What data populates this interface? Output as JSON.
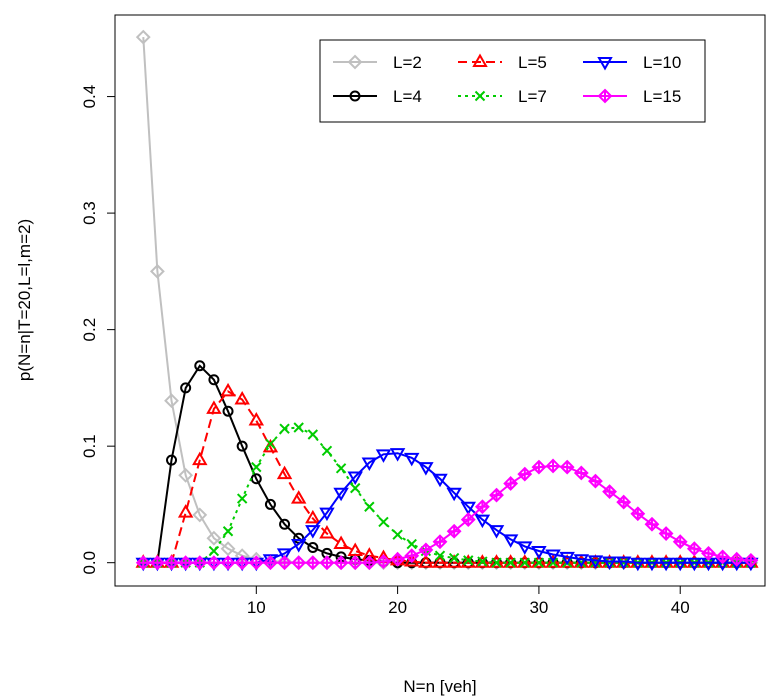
{
  "chart_data": {
    "type": "line",
    "title": "",
    "xlabel": "N=n [veh]",
    "ylabel": "p(N=n|T=20,L=l,m=2)",
    "xlim": [
      0,
      46
    ],
    "ylim": [
      -0.02,
      0.47
    ],
    "xticks": [
      10,
      20,
      30,
      40
    ],
    "yticks": [
      0.0,
      0.1,
      0.2,
      0.3,
      0.4
    ],
    "ytick_labels": [
      "0.0",
      "0.1",
      "0.2",
      "0.3",
      "0.4"
    ],
    "legend_position": "top-right",
    "series": [
      {
        "name": "L=2",
        "color": "#c0c0c0",
        "marker": "diamond",
        "linestyle": "solid",
        "x": [
          2,
          3,
          4,
          5,
          6,
          7,
          8,
          9,
          10,
          11,
          12,
          13,
          14,
          15,
          16,
          17,
          18,
          19,
          20,
          21,
          22,
          23,
          24,
          25,
          26,
          27,
          28,
          29,
          30,
          31,
          32,
          33,
          34,
          35,
          36,
          37,
          38,
          39,
          40,
          41,
          42,
          43,
          44,
          45
        ],
        "values": [
          0.451,
          0.25,
          0.139,
          0.075,
          0.041,
          0.021,
          0.012,
          0.006,
          0.003,
          0.001,
          0.001,
          0,
          0,
          0,
          0,
          0,
          0,
          0,
          0,
          0,
          0,
          0,
          0,
          0,
          0,
          0,
          0,
          0,
          0,
          0,
          0,
          0,
          0,
          0,
          0,
          0,
          0,
          0,
          0,
          0,
          0,
          0,
          0,
          0
        ]
      },
      {
        "name": "L=4",
        "color": "#000000",
        "marker": "circle",
        "linestyle": "solid",
        "x": [
          2,
          3,
          4,
          5,
          6,
          7,
          8,
          9,
          10,
          11,
          12,
          13,
          14,
          15,
          16,
          17,
          18,
          19,
          20,
          21,
          22,
          23,
          24,
          25,
          26,
          27,
          28,
          29,
          30,
          31,
          32,
          33,
          34,
          35,
          36,
          37,
          38,
          39,
          40,
          41,
          42,
          43,
          44,
          45
        ],
        "values": [
          0,
          0,
          0.088,
          0.15,
          0.169,
          0.157,
          0.13,
          0.1,
          0.072,
          0.05,
          0.033,
          0.021,
          0.013,
          0.008,
          0.005,
          0.003,
          0.002,
          0.001,
          0,
          0,
          0,
          0,
          0,
          0,
          0,
          0,
          0,
          0,
          0,
          0,
          0,
          0,
          0,
          0,
          0,
          0,
          0,
          0,
          0,
          0,
          0,
          0,
          0,
          0
        ]
      },
      {
        "name": "L=5",
        "color": "#ff0000",
        "marker": "triangle-up",
        "linestyle": "dashed",
        "x": [
          2,
          3,
          4,
          5,
          6,
          7,
          8,
          9,
          10,
          11,
          12,
          13,
          14,
          15,
          16,
          17,
          18,
          19,
          20,
          21,
          22,
          23,
          24,
          25,
          26,
          27,
          28,
          29,
          30,
          31,
          32,
          33,
          34,
          35,
          36,
          37,
          38,
          39,
          40,
          41,
          42,
          43,
          44,
          45
        ],
        "values": [
          0,
          0,
          0,
          0.043,
          0.088,
          0.132,
          0.147,
          0.14,
          0.122,
          0.099,
          0.076,
          0.055,
          0.038,
          0.025,
          0.016,
          0.01,
          0.006,
          0.004,
          0.002,
          0.001,
          0,
          0,
          0,
          0,
          0,
          0,
          0,
          0,
          0,
          0,
          0,
          0,
          0,
          0,
          0,
          0,
          0,
          0,
          0,
          0,
          0,
          0,
          0,
          0
        ]
      },
      {
        "name": "L=7",
        "color": "#00cc00",
        "marker": "cross",
        "linestyle": "dotted",
        "x": [
          2,
          3,
          4,
          5,
          6,
          7,
          8,
          9,
          10,
          11,
          12,
          13,
          14,
          15,
          16,
          17,
          18,
          19,
          20,
          21,
          22,
          23,
          24,
          25,
          26,
          27,
          28,
          29,
          30,
          31,
          32,
          33,
          34,
          35,
          36,
          37,
          38,
          39,
          40,
          41,
          42,
          43,
          44,
          45
        ],
        "values": [
          0,
          0,
          0,
          0,
          0,
          0.01,
          0.027,
          0.055,
          0.082,
          0.102,
          0.115,
          0.116,
          0.11,
          0.096,
          0.081,
          0.064,
          0.048,
          0.035,
          0.024,
          0.016,
          0.01,
          0.006,
          0.004,
          0.002,
          0.001,
          0,
          0,
          0,
          0,
          0,
          0,
          0,
          0,
          0,
          0,
          0,
          0,
          0,
          0,
          0,
          0,
          0,
          0,
          0
        ]
      },
      {
        "name": "L=10",
        "color": "#0000ff",
        "marker": "triangle-down",
        "linestyle": "solid",
        "x": [
          2,
          3,
          4,
          5,
          6,
          7,
          8,
          9,
          10,
          11,
          12,
          13,
          14,
          15,
          16,
          17,
          18,
          19,
          20,
          21,
          22,
          23,
          24,
          25,
          26,
          27,
          28,
          29,
          30,
          31,
          32,
          33,
          34,
          35,
          36,
          37,
          38,
          39,
          40,
          41,
          42,
          43,
          44,
          45
        ],
        "values": [
          0,
          0,
          0,
          0,
          0,
          0,
          0,
          0,
          0,
          0.003,
          0.008,
          0.016,
          0.028,
          0.043,
          0.06,
          0.074,
          0.086,
          0.093,
          0.094,
          0.09,
          0.082,
          0.072,
          0.06,
          0.048,
          0.037,
          0.028,
          0.02,
          0.014,
          0.01,
          0.007,
          0.005,
          0.003,
          0.002,
          0.001,
          0.001,
          0,
          0,
          0,
          0,
          0,
          0,
          0,
          0,
          0
        ]
      },
      {
        "name": "L=15",
        "color": "#ff00ff",
        "marker": "diamond-plus",
        "linestyle": "solid",
        "x": [
          2,
          3,
          4,
          5,
          6,
          7,
          8,
          9,
          10,
          11,
          12,
          13,
          14,
          15,
          16,
          17,
          18,
          19,
          20,
          21,
          22,
          23,
          24,
          25,
          26,
          27,
          28,
          29,
          30,
          31,
          32,
          33,
          34,
          35,
          36,
          37,
          38,
          39,
          40,
          41,
          42,
          43,
          44,
          45
        ],
        "values": [
          0,
          0,
          0,
          0,
          0,
          0,
          0,
          0,
          0,
          0,
          0,
          0,
          0,
          0,
          0,
          0,
          0,
          0.001,
          0.003,
          0.006,
          0.011,
          0.018,
          0.027,
          0.037,
          0.048,
          0.058,
          0.068,
          0.076,
          0.082,
          0.083,
          0.082,
          0.077,
          0.07,
          0.061,
          0.052,
          0.042,
          0.033,
          0.025,
          0.018,
          0.012,
          0.008,
          0.005,
          0.003,
          0.002
        ]
      }
    ]
  }
}
